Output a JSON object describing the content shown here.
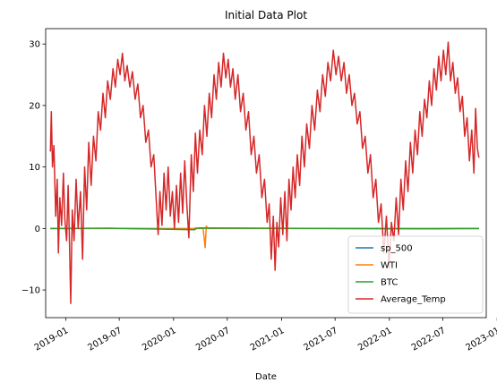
{
  "chart_data": {
    "type": "line",
    "title": "Initial Data Plot",
    "xlabel": "Date",
    "ylabel": "",
    "x_range": [
      "2018-10-25",
      "2022-11-25"
    ],
    "ylim": [
      -14.5,
      32.5
    ],
    "x_ticks": [
      {
        "date": "2019-01-01",
        "label": "2019-01"
      },
      {
        "date": "2019-07-01",
        "label": "2019-07"
      },
      {
        "date": "2020-01-01",
        "label": "2020-01"
      },
      {
        "date": "2020-07-01",
        "label": "2020-07"
      },
      {
        "date": "2021-01-01",
        "label": "2021-01"
      },
      {
        "date": "2021-07-01",
        "label": "2021-07"
      },
      {
        "date": "2022-01-01",
        "label": "2022-01"
      },
      {
        "date": "2022-07-01",
        "label": "2022-07"
      },
      {
        "date": "2023-01-01",
        "label": "2023-01"
      }
    ],
    "y_ticks": [
      -10,
      0,
      10,
      20,
      30
    ],
    "y_tick_labels": [
      "−10",
      "0",
      "10",
      "20",
      "30"
    ],
    "grid": false,
    "legend": "bottom-right",
    "x_label_rotation": 30,
    "series": [
      {
        "name": "sp_500",
        "color": "#1f77b4",
        "points": [
          [
            "2018-11-10",
            0.0
          ],
          [
            "2019-06-01",
            0.02
          ],
          [
            "2020-03-15",
            -0.1
          ],
          [
            "2020-03-25",
            0.08
          ],
          [
            "2021-01-01",
            0.01
          ],
          [
            "2022-01-01",
            -0.02
          ],
          [
            "2022-10-31",
            0.0
          ]
        ]
      },
      {
        "name": "WTI",
        "color": "#ff7f0e",
        "points": [
          [
            "2018-11-10",
            0.0
          ],
          [
            "2020-04-10",
            0.0
          ],
          [
            "2020-04-17",
            -3.1
          ],
          [
            "2020-04-21",
            0.4
          ],
          [
            "2020-04-25",
            0.0
          ],
          [
            "2022-10-31",
            0.0
          ]
        ]
      },
      {
        "name": "BTC",
        "color": "#2ca02c",
        "points": [
          [
            "2018-11-10",
            0.0
          ],
          [
            "2019-06-01",
            0.05
          ],
          [
            "2020-03-12",
            -0.2
          ],
          [
            "2020-03-15",
            0.05
          ],
          [
            "2021-01-01",
            0.03
          ],
          [
            "2022-06-01",
            -0.05
          ],
          [
            "2022-10-31",
            0.0
          ]
        ]
      },
      {
        "name": "Average_Temp",
        "color": "#d62728",
        "points": [
          [
            "2018-11-10",
            12.5
          ],
          [
            "2018-11-13",
            19.0
          ],
          [
            "2018-11-17",
            10.0
          ],
          [
            "2018-11-22",
            13.5
          ],
          [
            "2018-11-28",
            2.0
          ],
          [
            "2018-12-03",
            8.0
          ],
          [
            "2018-12-07",
            -4.0
          ],
          [
            "2018-12-12",
            5.0
          ],
          [
            "2018-12-18",
            0.5
          ],
          [
            "2018-12-24",
            9.0
          ],
          [
            "2018-12-29",
            1.5
          ],
          [
            "2019-01-04",
            -2.0
          ],
          [
            "2019-01-09",
            7.0
          ],
          [
            "2019-01-14",
            -3.0
          ],
          [
            "2019-01-18",
            -12.2
          ],
          [
            "2019-01-23",
            3.0
          ],
          [
            "2019-01-29",
            -2.0
          ],
          [
            "2019-02-05",
            8.0
          ],
          [
            "2019-02-12",
            0.0
          ],
          [
            "2019-02-20",
            6.0
          ],
          [
            "2019-02-27",
            -5.0
          ],
          [
            "2019-03-06",
            10.0
          ],
          [
            "2019-03-13",
            3.0
          ],
          [
            "2019-03-20",
            14.0
          ],
          [
            "2019-03-28",
            7.0
          ],
          [
            "2019-04-05",
            15.0
          ],
          [
            "2019-04-13",
            11.0
          ],
          [
            "2019-04-21",
            19.0
          ],
          [
            "2019-04-29",
            16.0
          ],
          [
            "2019-05-07",
            22.0
          ],
          [
            "2019-05-15",
            18.0
          ],
          [
            "2019-05-23",
            24.0
          ],
          [
            "2019-06-01",
            21.0
          ],
          [
            "2019-06-10",
            26.0
          ],
          [
            "2019-06-18",
            23.0
          ],
          [
            "2019-06-26",
            27.5
          ],
          [
            "2019-07-04",
            25.0
          ],
          [
            "2019-07-12",
            28.5
          ],
          [
            "2019-07-20",
            24.0
          ],
          [
            "2019-07-28",
            26.5
          ],
          [
            "2019-08-06",
            23.0
          ],
          [
            "2019-08-15",
            25.5
          ],
          [
            "2019-08-24",
            21.0
          ],
          [
            "2019-09-02",
            23.5
          ],
          [
            "2019-09-11",
            18.0
          ],
          [
            "2019-09-20",
            20.0
          ],
          [
            "2019-09-29",
            14.0
          ],
          [
            "2019-10-08",
            16.0
          ],
          [
            "2019-10-17",
            10.0
          ],
          [
            "2019-10-26",
            12.0
          ],
          [
            "2019-11-04",
            4.0
          ],
          [
            "2019-11-10",
            -1.0
          ],
          [
            "2019-11-16",
            6.0
          ],
          [
            "2019-11-23",
            0.5
          ],
          [
            "2019-11-30",
            9.0
          ],
          [
            "2019-12-07",
            3.0
          ],
          [
            "2019-12-14",
            10.0
          ],
          [
            "2019-12-21",
            2.0
          ],
          [
            "2019-12-28",
            6.0
          ],
          [
            "2020-01-04",
            0.0
          ],
          [
            "2020-01-11",
            7.0
          ],
          [
            "2020-01-18",
            1.0
          ],
          [
            "2020-01-25",
            9.0
          ],
          [
            "2020-02-01",
            2.5
          ],
          [
            "2020-02-08",
            11.0
          ],
          [
            "2020-02-15",
            4.0
          ],
          [
            "2020-02-22",
            -1.5
          ],
          [
            "2020-03-01",
            12.0
          ],
          [
            "2020-03-08",
            6.0
          ],
          [
            "2020-03-15",
            15.5
          ],
          [
            "2020-03-22",
            9.0
          ],
          [
            "2020-03-30",
            16.0
          ],
          [
            "2020-04-07",
            12.0
          ],
          [
            "2020-04-15",
            20.0
          ],
          [
            "2020-04-23",
            15.0
          ],
          [
            "2020-05-01",
            22.0
          ],
          [
            "2020-05-09",
            18.0
          ],
          [
            "2020-05-17",
            25.0
          ],
          [
            "2020-05-25",
            21.0
          ],
          [
            "2020-06-02",
            27.0
          ],
          [
            "2020-06-10",
            23.0
          ],
          [
            "2020-06-18",
            28.5
          ],
          [
            "2020-06-26",
            24.5
          ],
          [
            "2020-07-04",
            27.5
          ],
          [
            "2020-07-12",
            23.0
          ],
          [
            "2020-07-20",
            26.0
          ],
          [
            "2020-07-28",
            21.0
          ],
          [
            "2020-08-06",
            25.0
          ],
          [
            "2020-08-15",
            19.0
          ],
          [
            "2020-08-24",
            22.0
          ],
          [
            "2020-09-02",
            16.0
          ],
          [
            "2020-09-11",
            19.0
          ],
          [
            "2020-09-20",
            12.0
          ],
          [
            "2020-09-29",
            15.0
          ],
          [
            "2020-10-08",
            9.0
          ],
          [
            "2020-10-17",
            12.0
          ],
          [
            "2020-10-26",
            5.0
          ],
          [
            "2020-11-04",
            8.0
          ],
          [
            "2020-11-13",
            1.0
          ],
          [
            "2020-11-20",
            4.0
          ],
          [
            "2020-11-27",
            -5.0
          ],
          [
            "2020-12-04",
            2.0
          ],
          [
            "2020-12-10",
            -6.8
          ],
          [
            "2020-12-16",
            1.0
          ],
          [
            "2020-12-22",
            -3.0
          ],
          [
            "2020-12-29",
            5.0
          ],
          [
            "2021-01-05",
            -1.0
          ],
          [
            "2021-01-12",
            6.0
          ],
          [
            "2021-01-19",
            -2.0
          ],
          [
            "2021-01-26",
            8.0
          ],
          [
            "2021-02-02",
            3.0
          ],
          [
            "2021-02-09",
            10.0
          ],
          [
            "2021-02-16",
            5.0
          ],
          [
            "2021-02-23",
            12.0
          ],
          [
            "2021-03-03",
            7.0
          ],
          [
            "2021-03-11",
            15.0
          ],
          [
            "2021-03-19",
            10.0
          ],
          [
            "2021-03-27",
            17.0
          ],
          [
            "2021-04-05",
            13.0
          ],
          [
            "2021-04-14",
            20.0
          ],
          [
            "2021-04-23",
            16.0
          ],
          [
            "2021-05-02",
            22.5
          ],
          [
            "2021-05-11",
            19.0
          ],
          [
            "2021-05-20",
            25.0
          ],
          [
            "2021-05-29",
            21.5
          ],
          [
            "2021-06-07",
            27.0
          ],
          [
            "2021-06-16",
            24.0
          ],
          [
            "2021-06-25",
            29.0
          ],
          [
            "2021-07-04",
            25.0
          ],
          [
            "2021-07-13",
            28.0
          ],
          [
            "2021-07-22",
            24.0
          ],
          [
            "2021-07-31",
            27.0
          ],
          [
            "2021-08-09",
            22.0
          ],
          [
            "2021-08-18",
            25.0
          ],
          [
            "2021-08-27",
            20.0
          ],
          [
            "2021-09-05",
            22.0
          ],
          [
            "2021-09-14",
            17.0
          ],
          [
            "2021-09-23",
            19.0
          ],
          [
            "2021-10-02",
            13.0
          ],
          [
            "2021-10-11",
            15.0
          ],
          [
            "2021-10-20",
            9.0
          ],
          [
            "2021-10-29",
            12.0
          ],
          [
            "2021-11-07",
            5.0
          ],
          [
            "2021-11-16",
            8.0
          ],
          [
            "2021-11-25",
            1.0
          ],
          [
            "2021-12-04",
            4.0
          ],
          [
            "2021-12-13",
            -4.0
          ],
          [
            "2021-12-22",
            2.0
          ],
          [
            "2021-12-31",
            -6.5
          ],
          [
            "2022-01-08",
            1.0
          ],
          [
            "2022-01-16",
            -2.0
          ],
          [
            "2022-01-24",
            5.0
          ],
          [
            "2022-02-01",
            -1.0
          ],
          [
            "2022-02-09",
            8.0
          ],
          [
            "2022-02-17",
            3.0
          ],
          [
            "2022-02-25",
            11.0
          ],
          [
            "2022-03-05",
            6.0
          ],
          [
            "2022-03-13",
            14.0
          ],
          [
            "2022-03-21",
            9.0
          ],
          [
            "2022-03-29",
            16.0
          ],
          [
            "2022-04-06",
            12.0
          ],
          [
            "2022-04-14",
            19.0
          ],
          [
            "2022-04-22",
            15.0
          ],
          [
            "2022-04-30",
            21.0
          ],
          [
            "2022-05-08",
            18.0
          ],
          [
            "2022-05-16",
            24.0
          ],
          [
            "2022-05-24",
            20.0
          ],
          [
            "2022-06-01",
            26.0
          ],
          [
            "2022-06-09",
            22.5
          ],
          [
            "2022-06-17",
            28.0
          ],
          [
            "2022-06-25",
            24.0
          ],
          [
            "2022-07-03",
            29.0
          ],
          [
            "2022-07-11",
            25.0
          ],
          [
            "2022-07-19",
            30.3
          ],
          [
            "2022-07-27",
            24.0
          ],
          [
            "2022-08-04",
            27.0
          ],
          [
            "2022-08-12",
            22.0
          ],
          [
            "2022-08-20",
            24.5
          ],
          [
            "2022-08-28",
            19.0
          ],
          [
            "2022-09-05",
            21.5
          ],
          [
            "2022-09-13",
            15.0
          ],
          [
            "2022-09-21",
            18.0
          ],
          [
            "2022-09-29",
            11.0
          ],
          [
            "2022-10-07",
            16.0
          ],
          [
            "2022-10-14",
            9.0
          ],
          [
            "2022-10-20",
            19.5
          ],
          [
            "2022-10-26",
            13.0
          ],
          [
            "2022-10-31",
            11.5
          ]
        ]
      }
    ]
  }
}
